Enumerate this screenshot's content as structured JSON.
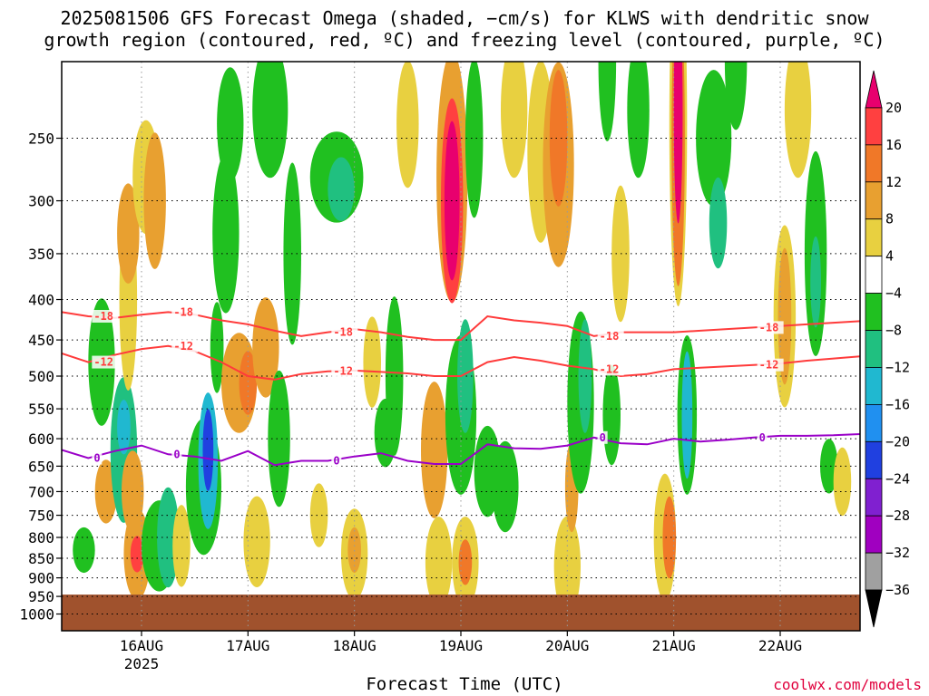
{
  "title_line1": "2025081506 GFS Forecast Omega (shaded, −cm/s) for KLWS with dendritic snow",
  "title_line2": "growth region (contoured, red, ºC) and freezing level (contoured, purple, ºC)",
  "xlabel": "Forecast Time (UTC)",
  "watermark": "coolwx.com/models",
  "colors": {
    "dgz": "#ff3b3b",
    "freezing": "#9a00c8",
    "ground": "#a0522d"
  },
  "chart_data": {
    "type": "heatmap",
    "title": "2025081506 GFS Forecast Omega (shaded, −cm/s) for KLWS with dendritic snow growth region (contoured, red, ºC) and freezing level (contoured, purple, ºC)",
    "xlabel": "Forecast Time (UTC)",
    "ylabel": "",
    "x_range_hours_after_start": [
      0,
      180
    ],
    "x_ticks": [
      {
        "label": "16AUG",
        "sub": "2025",
        "hour": 18
      },
      {
        "label": "17AUG",
        "sub": "",
        "hour": 42
      },
      {
        "label": "18AUG",
        "sub": "",
        "hour": 66
      },
      {
        "label": "19AUG",
        "sub": "",
        "hour": 90
      },
      {
        "label": "20AUG",
        "sub": "",
        "hour": 114
      },
      {
        "label": "21AUG",
        "sub": "",
        "hour": 138
      },
      {
        "label": "22AUG",
        "sub": "",
        "hour": 162
      }
    ],
    "y_scale": "log-pressure",
    "y_range_hPa": [
      1050,
      200
    ],
    "y_ticks": [
      250,
      300,
      350,
      400,
      450,
      500,
      550,
      600,
      650,
      700,
      750,
      800,
      850,
      900,
      950,
      1000
    ],
    "ground_pressure_hPa": 945,
    "colorbar": {
      "labels": [
        "20",
        "16",
        "12",
        "8",
        "4",
        "−4",
        "−8",
        "−12",
        "−16",
        "−20",
        "−24",
        "−28",
        "−32",
        "−36"
      ],
      "colors": [
        "#e8006e",
        "#ff4040",
        "#f07828",
        "#e8a030",
        "#e8d040",
        "#ffffff",
        "#20c020",
        "#20c080",
        "#20b8d0",
        "#2090f0",
        "#2040e0",
        "#8020d0",
        "#a000c0",
        "#a0a0a0",
        "#000000"
      ]
    },
    "contours": [
      {
        "name": "-18",
        "label": "-18",
        "color": "#ff3b3b",
        "x": [
          0,
          6,
          12,
          18,
          24,
          30,
          36,
          42,
          48,
          54,
          60,
          66,
          72,
          78,
          84,
          90,
          96,
          102,
          108,
          114,
          120,
          126,
          132,
          138,
          144,
          150,
          156,
          162,
          168,
          174,
          180
        ],
        "y": [
          415,
          420,
          422,
          418,
          415,
          418,
          425,
          430,
          438,
          445,
          440,
          436,
          440,
          446,
          450,
          450,
          420,
          425,
          428,
          432,
          445,
          440,
          440,
          440,
          438,
          436,
          434,
          432,
          430,
          428,
          426
        ]
      },
      {
        "name": "-12",
        "label": "-12",
        "color": "#ff3b3b",
        "x": [
          0,
          6,
          12,
          18,
          24,
          30,
          36,
          42,
          48,
          54,
          60,
          66,
          72,
          78,
          84,
          90,
          96,
          102,
          108,
          114,
          120,
          126,
          132,
          138,
          144,
          150,
          156,
          162,
          168,
          174,
          180
        ],
        "y": [
          468,
          480,
          470,
          462,
          458,
          465,
          480,
          500,
          505,
          497,
          493,
          492,
          494,
          496,
          500,
          500,
          480,
          473,
          478,
          485,
          490,
          500,
          497,
          490,
          488,
          486,
          484,
          482,
          478,
          475,
          472
        ]
      },
      {
        "name": "0",
        "label": "0",
        "color": "#9a00c8",
        "x": [
          0,
          6,
          12,
          18,
          24,
          30,
          36,
          42,
          48,
          54,
          60,
          66,
          72,
          78,
          84,
          90,
          96,
          102,
          108,
          114,
          120,
          126,
          132,
          138,
          144,
          150,
          156,
          162,
          168,
          174,
          180
        ],
        "y": [
          620,
          635,
          622,
          612,
          628,
          632,
          640,
          622,
          648,
          640,
          640,
          632,
          626,
          640,
          646,
          646,
          610,
          617,
          618,
          612,
          598,
          608,
          610,
          600,
          605,
          602,
          598,
          595,
          595,
          594,
          592
        ]
      }
    ],
    "omega_cells": [
      {
        "x": 5,
        "p": 830,
        "w": 2.5,
        "h": 0.1,
        "v": -8
      },
      {
        "x": 9,
        "p": 480,
        "w": 3,
        "h": 0.28,
        "v": -8
      },
      {
        "x": 10,
        "p": 700,
        "w": 2.5,
        "h": 0.14,
        "v": 8
      },
      {
        "x": 14,
        "p": 620,
        "w": 3,
        "h": 0.32,
        "v": -12
      },
      {
        "x": 14,
        "p": 580,
        "w": 1.5,
        "h": 0.12,
        "v": -16
      },
      {
        "x": 15,
        "p": 400,
        "w": 2,
        "h": 0.4,
        "v": 4
      },
      {
        "x": 15,
        "p": 330,
        "w": 2.5,
        "h": 0.22,
        "v": 8
      },
      {
        "x": 16,
        "p": 700,
        "w": 2.5,
        "h": 0.18,
        "v": 8
      },
      {
        "x": 17,
        "p": 840,
        "w": 3,
        "h": 0.2,
        "v": 8
      },
      {
        "x": 17,
        "p": 840,
        "w": 1.5,
        "h": 0.08,
        "v": 16
      },
      {
        "x": 19,
        "p": 280,
        "w": 3,
        "h": 0.25,
        "v": 4
      },
      {
        "x": 21,
        "p": 300,
        "w": 2.5,
        "h": 0.3,
        "v": 8
      },
      {
        "x": 22,
        "p": 820,
        "w": 4,
        "h": 0.2,
        "v": -8
      },
      {
        "x": 24,
        "p": 800,
        "w": 2.5,
        "h": 0.22,
        "v": -12
      },
      {
        "x": 27,
        "p": 820,
        "w": 2,
        "h": 0.18,
        "v": 4
      },
      {
        "x": 32,
        "p": 690,
        "w": 4,
        "h": 0.3,
        "v": -8
      },
      {
        "x": 33,
        "p": 640,
        "w": 2.2,
        "h": 0.3,
        "v": -16
      },
      {
        "x": 33,
        "p": 620,
        "w": 1.2,
        "h": 0.18,
        "v": -24
      },
      {
        "x": 35,
        "p": 460,
        "w": 1.5,
        "h": 0.2,
        "v": -8
      },
      {
        "x": 37,
        "p": 330,
        "w": 3,
        "h": 0.35,
        "v": -8
      },
      {
        "x": 38,
        "p": 240,
        "w": 3,
        "h": 0.25,
        "v": -8
      },
      {
        "x": 40,
        "p": 510,
        "w": 4,
        "h": 0.22,
        "v": 8
      },
      {
        "x": 42,
        "p": 510,
        "w": 2,
        "h": 0.14,
        "v": 12
      },
      {
        "x": 44,
        "p": 810,
        "w": 3,
        "h": 0.2,
        "v": 4
      },
      {
        "x": 46,
        "p": 460,
        "w": 3,
        "h": 0.22,
        "v": 8
      },
      {
        "x": 47,
        "p": 230,
        "w": 4,
        "h": 0.3,
        "v": -8
      },
      {
        "x": 49,
        "p": 600,
        "w": 2.5,
        "h": 0.3,
        "v": -8
      },
      {
        "x": 52,
        "p": 350,
        "w": 2,
        "h": 0.4,
        "v": -8
      },
      {
        "x": 58,
        "p": 750,
        "w": 2,
        "h": 0.14,
        "v": 4
      },
      {
        "x": 62,
        "p": 280,
        "w": 6,
        "h": 0.2,
        "v": -8
      },
      {
        "x": 63,
        "p": 290,
        "w": 3,
        "h": 0.14,
        "v": -12
      },
      {
        "x": 66,
        "p": 840,
        "w": 3,
        "h": 0.2,
        "v": 4
      },
      {
        "x": 66,
        "p": 830,
        "w": 1.5,
        "h": 0.1,
        "v": 8
      },
      {
        "x": 70,
        "p": 480,
        "w": 2,
        "h": 0.2,
        "v": 4
      },
      {
        "x": 73,
        "p": 590,
        "w": 2.5,
        "h": 0.15,
        "v": -8
      },
      {
        "x": 75,
        "p": 500,
        "w": 2,
        "h": 0.35,
        "v": -8
      },
      {
        "x": 78,
        "p": 240,
        "w": 2.5,
        "h": 0.28,
        "v": 4
      },
      {
        "x": 84,
        "p": 620,
        "w": 3,
        "h": 0.3,
        "v": 8
      },
      {
        "x": 85,
        "p": 860,
        "w": 3,
        "h": 0.2,
        "v": 4
      },
      {
        "x": 88,
        "p": 280,
        "w": 3.5,
        "h": 0.55,
        "v": 8
      },
      {
        "x": 88,
        "p": 300,
        "w": 2.5,
        "h": 0.45,
        "v": 16
      },
      {
        "x": 88,
        "p": 300,
        "w": 1.7,
        "h": 0.35,
        "v": 20
      },
      {
        "x": 90,
        "p": 560,
        "w": 3.5,
        "h": 0.35,
        "v": -8
      },
      {
        "x": 91,
        "p": 500,
        "w": 1.8,
        "h": 0.25,
        "v": -12
      },
      {
        "x": 91,
        "p": 860,
        "w": 3,
        "h": 0.2,
        "v": 4
      },
      {
        "x": 91,
        "p": 860,
        "w": 1.5,
        "h": 0.1,
        "v": 12
      },
      {
        "x": 93,
        "p": 250,
        "w": 2,
        "h": 0.35,
        "v": -8
      },
      {
        "x": 96,
        "p": 660,
        "w": 3,
        "h": 0.2,
        "v": -8
      },
      {
        "x": 100,
        "p": 690,
        "w": 3,
        "h": 0.2,
        "v": -8
      },
      {
        "x": 102,
        "p": 230,
        "w": 3,
        "h": 0.3,
        "v": 4
      },
      {
        "x": 108,
        "p": 260,
        "w": 3,
        "h": 0.4,
        "v": 4
      },
      {
        "x": 112,
        "p": 270,
        "w": 3.5,
        "h": 0.45,
        "v": 8
      },
      {
        "x": 112,
        "p": 250,
        "w": 2,
        "h": 0.3,
        "v": 12
      },
      {
        "x": 114,
        "p": 870,
        "w": 3,
        "h": 0.22,
        "v": 4
      },
      {
        "x": 115,
        "p": 690,
        "w": 1.5,
        "h": 0.2,
        "v": 8
      },
      {
        "x": 117,
        "p": 540,
        "w": 3,
        "h": 0.4,
        "v": -8
      },
      {
        "x": 118,
        "p": 500,
        "w": 1.5,
        "h": 0.25,
        "v": -12
      },
      {
        "x": 123,
        "p": 200,
        "w": 2,
        "h": 0.35,
        "v": -8
      },
      {
        "x": 124,
        "p": 560,
        "w": 2,
        "h": 0.22,
        "v": -8
      },
      {
        "x": 126,
        "p": 350,
        "w": 2,
        "h": 0.3,
        "v": 4
      },
      {
        "x": 130,
        "p": 230,
        "w": 2.5,
        "h": 0.3,
        "v": -8
      },
      {
        "x": 136,
        "p": 800,
        "w": 2.5,
        "h": 0.28,
        "v": 4
      },
      {
        "x": 137,
        "p": 800,
        "w": 1.5,
        "h": 0.18,
        "v": 12
      },
      {
        "x": 139,
        "p": 240,
        "w": 2,
        "h": 0.8,
        "v": 4
      },
      {
        "x": 139,
        "p": 250,
        "w": 1.5,
        "h": 0.65,
        "v": 12
      },
      {
        "x": 139,
        "p": 230,
        "w": 1,
        "h": 0.5,
        "v": 20
      },
      {
        "x": 141,
        "p": 560,
        "w": 2.2,
        "h": 0.35,
        "v": -8
      },
      {
        "x": 141,
        "p": 560,
        "w": 1.2,
        "h": 0.28,
        "v": -16
      },
      {
        "x": 147,
        "p": 250,
        "w": 4,
        "h": 0.3,
        "v": -8
      },
      {
        "x": 148,
        "p": 320,
        "w": 2,
        "h": 0.2,
        "v": -12
      },
      {
        "x": 152,
        "p": 200,
        "w": 2.5,
        "h": 0.3,
        "v": -8
      },
      {
        "x": 163,
        "p": 420,
        "w": 2.5,
        "h": 0.4,
        "v": 4
      },
      {
        "x": 163,
        "p": 420,
        "w": 1.5,
        "h": 0.3,
        "v": 8
      },
      {
        "x": 166,
        "p": 230,
        "w": 3,
        "h": 0.3,
        "v": 4
      },
      {
        "x": 170,
        "p": 350,
        "w": 2.5,
        "h": 0.45,
        "v": -8
      },
      {
        "x": 170,
        "p": 380,
        "w": 1.2,
        "h": 0.2,
        "v": -12
      },
      {
        "x": 173,
        "p": 650,
        "w": 2,
        "h": 0.12,
        "v": -8
      },
      {
        "x": 176,
        "p": 680,
        "w": 2,
        "h": 0.15,
        "v": 4
      }
    ]
  }
}
